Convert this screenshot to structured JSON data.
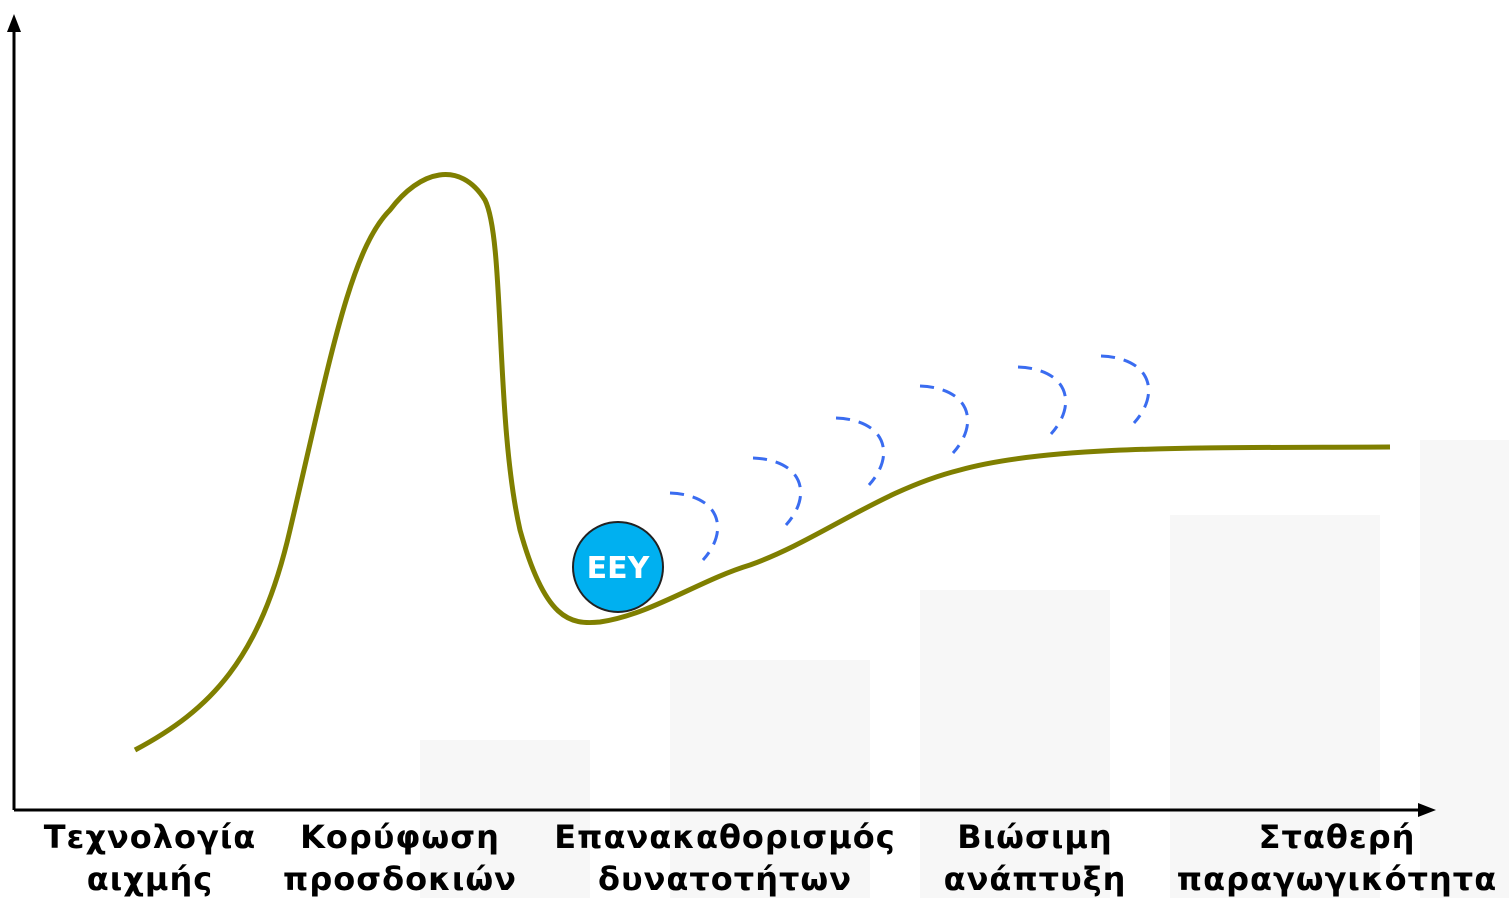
{
  "phases": [
    {
      "line1": "Τεχνολογία",
      "line2": "αιχμής"
    },
    {
      "line1": "Κορύφωση",
      "line2": "προσδοκιών"
    },
    {
      "line1": "Επανακαθορισμός",
      "line2": "δυνατοτήτων"
    },
    {
      "line1": "Βιώσιμη",
      "line2": "ανάπτυξη"
    },
    {
      "line1": "Σταθερή",
      "line2": "παραγωγικότητα"
    }
  ],
  "badge": "ΕΕΥ"
}
